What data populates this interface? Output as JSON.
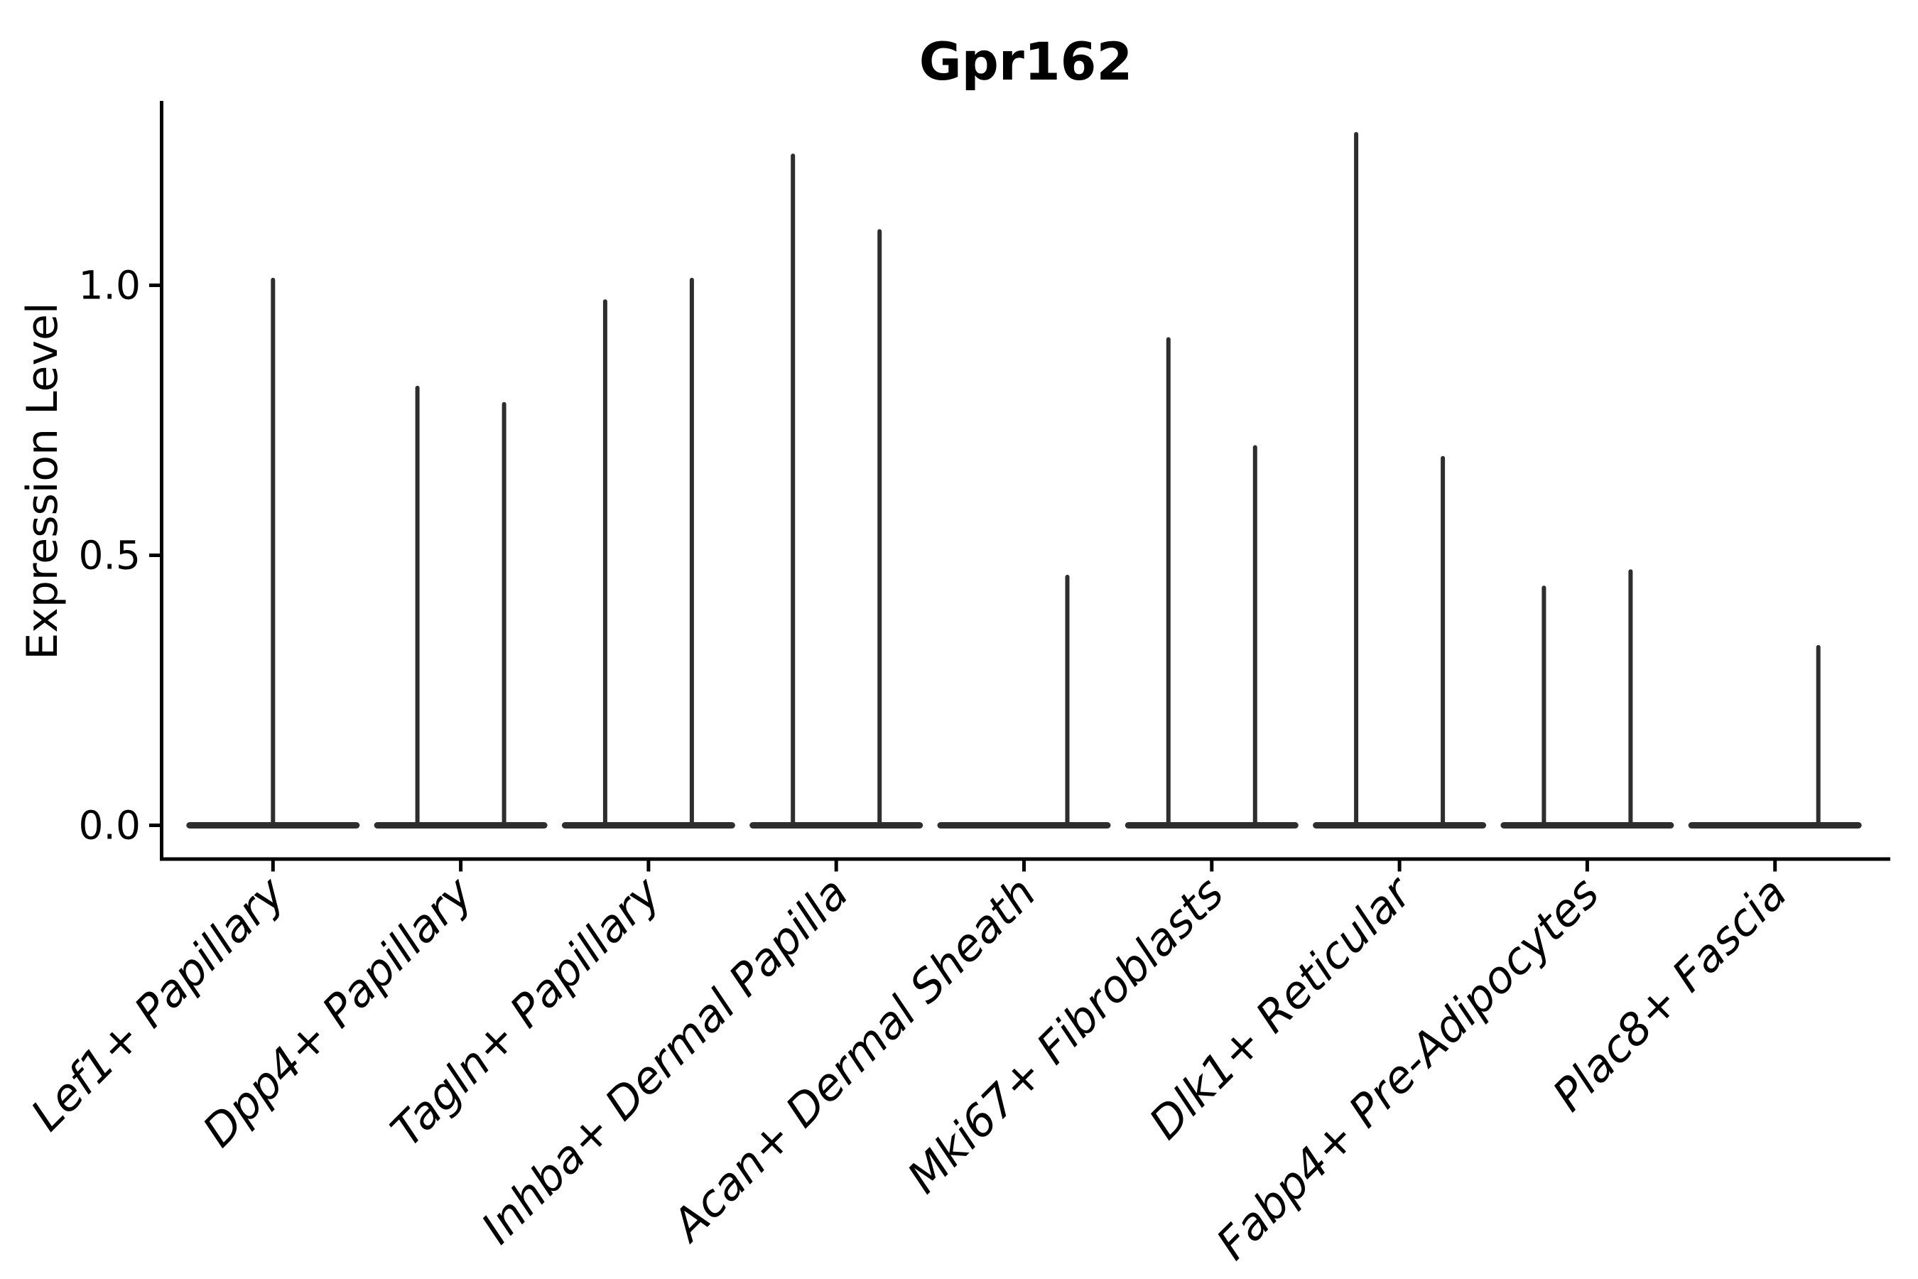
{
  "chart_data": {
    "type": "violin",
    "title": "Gpr162",
    "xlabel": "",
    "ylabel": "Expression Level",
    "yticks": [
      "0.0",
      "0.5",
      "1.0"
    ],
    "ytick_values": [
      0.0,
      0.5,
      1.0
    ],
    "ylim": [
      -0.06,
      1.34
    ],
    "grid": false,
    "legend_position": "none",
    "style_notes": "black-on-white matplotlib-style violin plot; violins collapse to a flat base at 0 with one thin spike per sub-violin reaching the max expression value; x tick labels italic, rotated 45 degrees",
    "categories": [
      "Lef1+ Papillary",
      "Dpp4+ Papillary",
      "Tagln+ Papillary",
      "Inhba+ Dermal Papilla",
      "Acan+ Dermal Sheath",
      "Mki67+ Fibroblasts",
      "Dlk1+ Reticular",
      "Fabp4+ Pre-Adipocytes",
      "Plac8+ Fascia"
    ],
    "violins": [
      {
        "label": "Lef1+ Papillary",
        "spikes": [
          {
            "slot": "center",
            "max": 1.01
          }
        ]
      },
      {
        "label": "Dpp4+ Papillary",
        "spikes": [
          {
            "slot": "left",
            "max": 0.81
          },
          {
            "slot": "right",
            "max": 0.78
          }
        ]
      },
      {
        "label": "Tagln+ Papillary",
        "spikes": [
          {
            "slot": "left",
            "max": 0.97
          },
          {
            "slot": "right",
            "max": 1.01
          }
        ]
      },
      {
        "label": "Inhba+ Dermal Papilla",
        "spikes": [
          {
            "slot": "left",
            "max": 1.24
          },
          {
            "slot": "right",
            "max": 1.1
          }
        ]
      },
      {
        "label": "Acan+ Dermal Sheath",
        "spikes": [
          {
            "slot": "right",
            "max": 0.46
          }
        ]
      },
      {
        "label": "Mki67+ Fibroblasts",
        "spikes": [
          {
            "slot": "left",
            "max": 0.9
          },
          {
            "slot": "right",
            "max": 0.7
          }
        ]
      },
      {
        "label": "Dlk1+ Reticular",
        "spikes": [
          {
            "slot": "left",
            "max": 1.28
          },
          {
            "slot": "right",
            "max": 0.68
          }
        ]
      },
      {
        "label": "Fabp4+ Pre-Adipocytes",
        "spikes": [
          {
            "slot": "left",
            "max": 0.44
          },
          {
            "slot": "right",
            "max": 0.47
          }
        ]
      },
      {
        "label": "Plac8+ Fascia",
        "spikes": [
          {
            "slot": "right",
            "max": 0.33
          }
        ]
      }
    ],
    "colors": {
      "ink": "#000000",
      "violin": "#2e2e2e",
      "background": "#ffffff"
    }
  }
}
